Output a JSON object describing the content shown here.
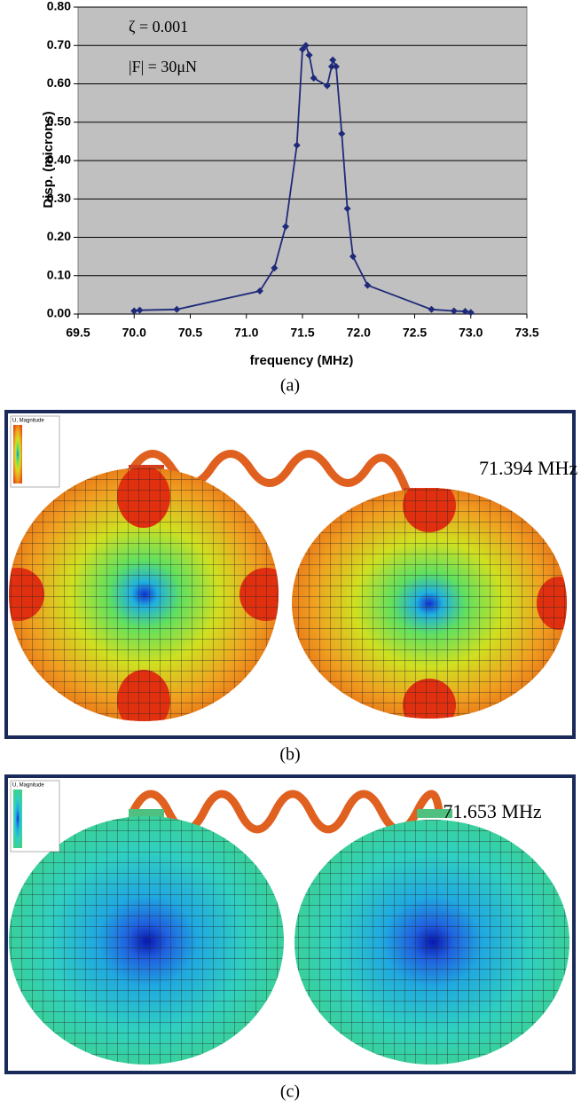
{
  "chart_data": {
    "type": "line",
    "x_label": "frequency (MHz)",
    "y_label": "Disp. (microns)",
    "annotations": [
      "ζ = 0.001",
      "|F| = 30μN"
    ],
    "x": [
      70.0,
      70.05,
      70.38,
      71.12,
      71.25,
      71.35,
      71.45,
      71.5,
      71.53,
      71.56,
      71.6,
      71.72,
      71.76,
      71.77,
      71.8,
      71.85,
      71.9,
      71.95,
      72.08,
      72.65,
      72.85,
      72.95,
      73.0
    ],
    "values": [
      0.008,
      0.01,
      0.012,
      0.06,
      0.12,
      0.228,
      0.44,
      0.69,
      0.7,
      0.675,
      0.615,
      0.595,
      0.645,
      0.662,
      0.645,
      0.47,
      0.275,
      0.15,
      0.075,
      0.012,
      0.008,
      0.007,
      0.004
    ],
    "color": "#1f2a7a",
    "xlim": [
      69.5,
      73.5
    ],
    "xticks": [
      {
        "value": 69.5,
        "label": "69.5"
      },
      {
        "value": 70.0,
        "label": "70.0"
      },
      {
        "value": 70.5,
        "label": "70.5"
      },
      {
        "value": 71.0,
        "label": "71.0"
      },
      {
        "value": 71.5,
        "label": "71.5"
      },
      {
        "value": 72.0,
        "label": "72.0"
      },
      {
        "value": 72.5,
        "label": "72.5"
      },
      {
        "value": 73.0,
        "label": "73.0"
      },
      {
        "value": 73.5,
        "label": "73.5"
      }
    ],
    "ylim": [
      0,
      0.8
    ],
    "yticks": [
      {
        "value": 0,
        "label": "0.00"
      },
      {
        "value": 0.1,
        "label": "0.10"
      },
      {
        "value": 0.2,
        "label": "0.20"
      },
      {
        "value": 0.3,
        "label": "0.30"
      },
      {
        "value": 0.4,
        "label": "0.40"
      },
      {
        "value": 0.5,
        "label": "0.50"
      },
      {
        "value": 0.6,
        "label": "0.60"
      },
      {
        "value": 0.7,
        "label": "0.70"
      },
      {
        "value": 0.8,
        "label": "0.80"
      }
    ],
    "grid": true
  },
  "panel_a": {
    "caption": "(a)"
  },
  "panel_b": {
    "frequency": "71.394 MHz",
    "legend_title": "U, Magnitude",
    "caption": "(b)"
  },
  "panel_c": {
    "frequency": "71.653 MHz",
    "legend_title": "U, Magnitude",
    "caption": "(c)"
  }
}
